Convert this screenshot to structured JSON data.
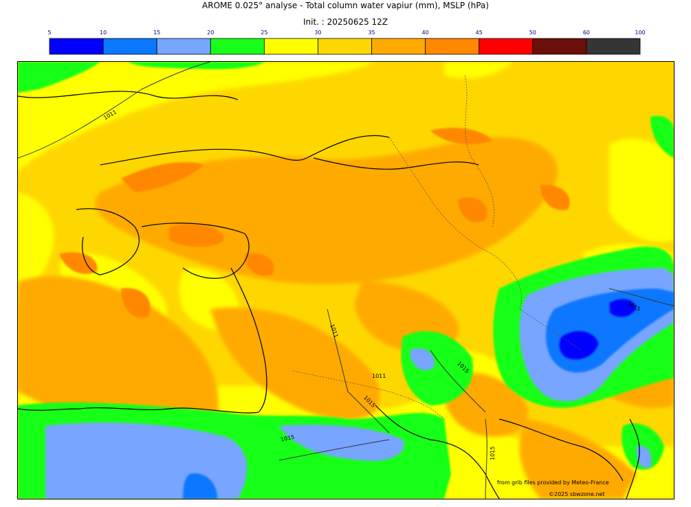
{
  "title": "AROME 0.025° analyse - Total column water vapiur (mm), MSLP (hPa)",
  "init": "Init. : 20250625 12Z",
  "colorbar": {
    "ticks": [
      "5",
      "10",
      "15",
      "20",
      "25",
      "30",
      "35",
      "40",
      "45",
      "50",
      "60",
      "100"
    ],
    "colors": [
      "#0000ff",
      "#0a78ff",
      "#78a5ff",
      "#19ff19",
      "#ffff00",
      "#ffd700",
      "#ffaa00",
      "#ff8800",
      "#ff0000",
      "#6b0f0a",
      "#353535"
    ]
  },
  "map": {
    "isobar_labels": [
      "1011",
      "1011",
      "1015",
      "1011",
      "1015",
      "1015",
      "1015",
      "1015"
    ],
    "credit": "from grib files provided by Meteo-France",
    "copyright": "©2025 sbwzone.net"
  },
  "colors": {
    "base": "#ffd700",
    "frame": "#000000"
  }
}
